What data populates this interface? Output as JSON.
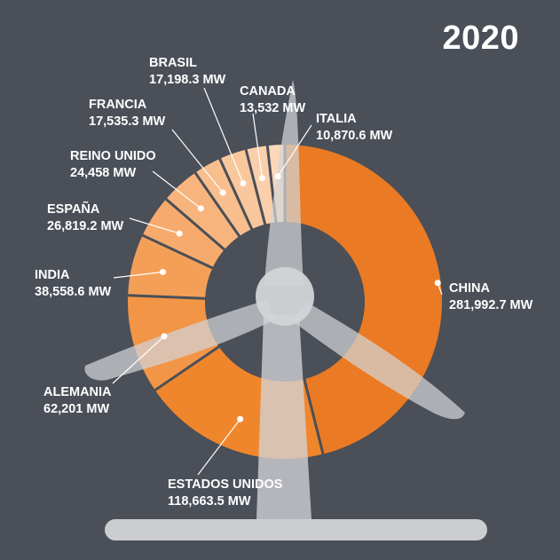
{
  "year_label": "2020",
  "colors": {
    "background": "#4a4f58",
    "turbine": "#d3d4d7",
    "separator": "#4a4f58",
    "text": "#ffffff"
  },
  "chart_data": {
    "type": "pie",
    "slices": [
      {
        "label": "CHINA",
        "value_label": "281,992.7 MW",
        "value": 281992.7,
        "color": "#ea7a23"
      },
      {
        "label": "ESTADOS UNIDOS",
        "value_label": "118,663.5 MW",
        "value": 118663.5,
        "color": "#f0862c"
      },
      {
        "label": "ALEMANIA",
        "value_label": "62,201 MW",
        "value": 62201,
        "color": "#f39547"
      },
      {
        "label": "INDIA",
        "value_label": "38,558.6 MW",
        "value": 38558.6,
        "color": "#f49f58"
      },
      {
        "label": "ESPAÑA",
        "value_label": "26,819.2 MW",
        "value": 26819.2,
        "color": "#f6ab6c"
      },
      {
        "label": "REINO UNIDO",
        "value_label": "24,458 MW",
        "value": 24458,
        "color": "#f7b57d"
      },
      {
        "label": "FRANCIA",
        "value_label": "17,535.3 MW",
        "value": 17535.3,
        "color": "#f8be8d"
      },
      {
        "label": "BRASIL",
        "value_label": "17,198.3 MW",
        "value": 17198.3,
        "color": "#f9c79c"
      },
      {
        "label": "CANADA",
        "value_label": "13,532 MW",
        "value": 13532,
        "color": "#facfab"
      },
      {
        "label": "ITALIA",
        "value_label": "10,870.6 MW",
        "value": 10870.6,
        "color": "#fbd8ba"
      }
    ]
  }
}
